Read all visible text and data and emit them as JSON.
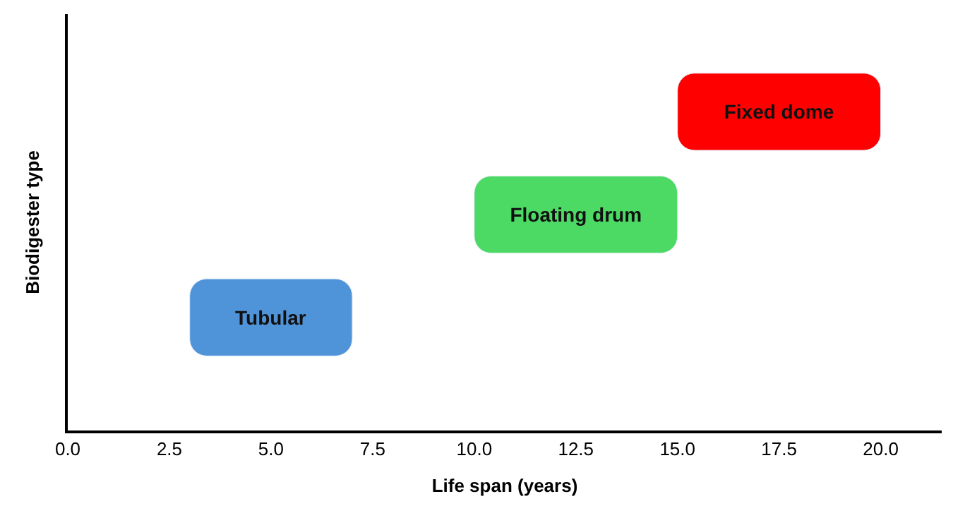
{
  "chart_data": {
    "type": "bar",
    "orientation": "horizontal",
    "xlabel": "Life span (years)",
    "ylabel": "Biodigester type",
    "categories": [
      "Fixed dome",
      "Floating drum",
      "Tubular"
    ],
    "base": [
      15,
      10,
      3
    ],
    "values": [
      5,
      5,
      4
    ],
    "colors": [
      "#ff0000",
      "#4cd964",
      "#4f94d9"
    ],
    "xlim": [
      0,
      21.5
    ],
    "xticks": [
      {
        "value": 0,
        "label": "0.0"
      },
      {
        "value": 2.5,
        "label": "2.5"
      },
      {
        "value": 5,
        "label": "5.0"
      },
      {
        "value": 7.5,
        "label": "7.5"
      },
      {
        "value": 10,
        "label": "10.0"
      },
      {
        "value": 12.5,
        "label": "12.5"
      },
      {
        "value": 15,
        "label": "15.0"
      },
      {
        "value": 17.5,
        "label": "17.5"
      },
      {
        "value": 20,
        "label": "20.0"
      }
    ],
    "tick_labels": "x"
  }
}
